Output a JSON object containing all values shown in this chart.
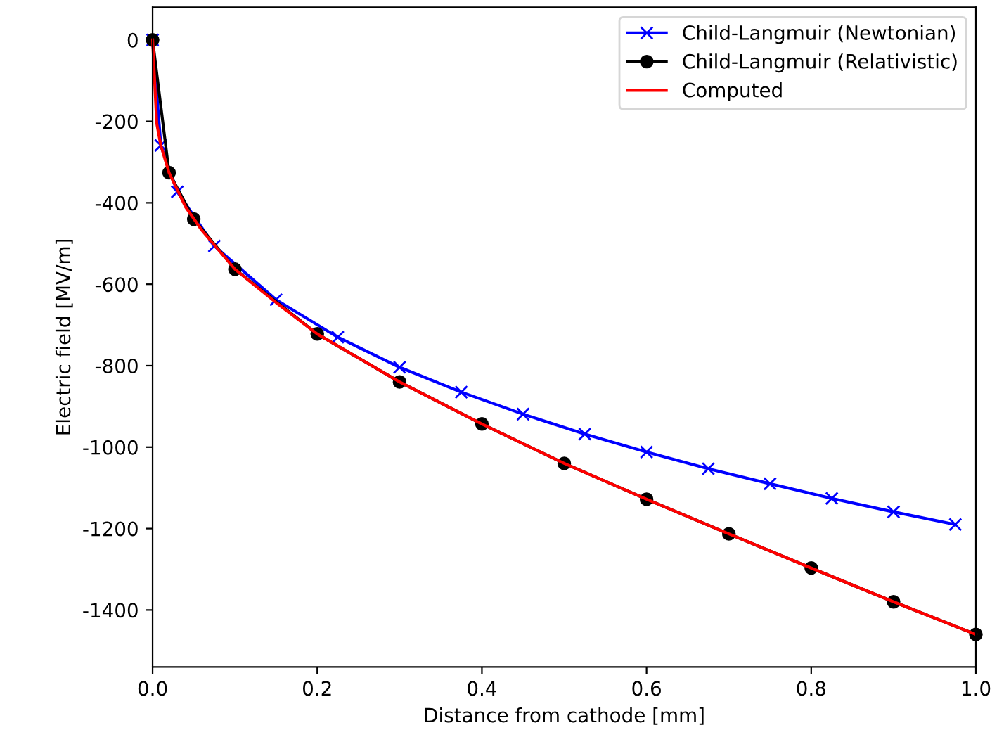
{
  "chart_data": {
    "type": "line",
    "xlabel": "Distance from cathode [mm]",
    "ylabel": "Electric field [MV/m]",
    "xlim": [
      0,
      1.0
    ],
    "ylim": [
      -1540,
      80
    ],
    "xticks": [
      {
        "value": 0,
        "label": "0.0"
      },
      {
        "value": 0.2,
        "label": "0.2"
      },
      {
        "value": 0.4,
        "label": "0.4"
      },
      {
        "value": 0.6,
        "label": "0.6"
      },
      {
        "value": 0.8,
        "label": "0.8"
      },
      {
        "value": 1.0,
        "label": "1.0"
      }
    ],
    "yticks": [
      0,
      -200,
      -400,
      -600,
      -800,
      -1000,
      -1200,
      -1400
    ],
    "grid": false,
    "legend": "top right",
    "series": [
      {
        "name": "Child-Langmuir (Newtonian)",
        "color": "#0000ff",
        "marker": "cross",
        "x": [
          0,
          0.01,
          0.03,
          0.075,
          0.15,
          0.225,
          0.3,
          0.375,
          0.45,
          0.525,
          0.6,
          0.675,
          0.75,
          0.825,
          0.9,
          0.975
        ],
        "values": [
          0,
          -259,
          -373,
          -506,
          -638,
          -730,
          -804,
          -865,
          -919,
          -968,
          -1012,
          -1053,
          -1090,
          -1126,
          -1159,
          -1190
        ]
      },
      {
        "name": "Child-Langmuir (Relativistic)",
        "color": "#000000",
        "marker": "circle",
        "x": [
          0,
          0.02,
          0.05,
          0.1,
          0.2,
          0.3,
          0.4,
          0.5,
          0.6,
          0.7,
          0.8,
          0.9,
          1.0
        ],
        "values": [
          0,
          -326,
          -440,
          -563,
          -722,
          -840,
          -943,
          -1040,
          -1128,
          -1213,
          -1297,
          -1380,
          -1460
        ]
      },
      {
        "name": "Computed",
        "color": "#ff0000",
        "marker": "none",
        "x": [
          0,
          0.005,
          0.01,
          0.02,
          0.04,
          0.06,
          0.1,
          0.15,
          0.2,
          0.3,
          0.4,
          0.5,
          0.6,
          0.7,
          0.8,
          0.9,
          1.0
        ],
        "values": [
          0,
          -205,
          -259,
          -326,
          -410,
          -468,
          -563,
          -645,
          -722,
          -840,
          -943,
          -1040,
          -1128,
          -1213,
          -1297,
          -1380,
          -1460
        ]
      }
    ]
  }
}
